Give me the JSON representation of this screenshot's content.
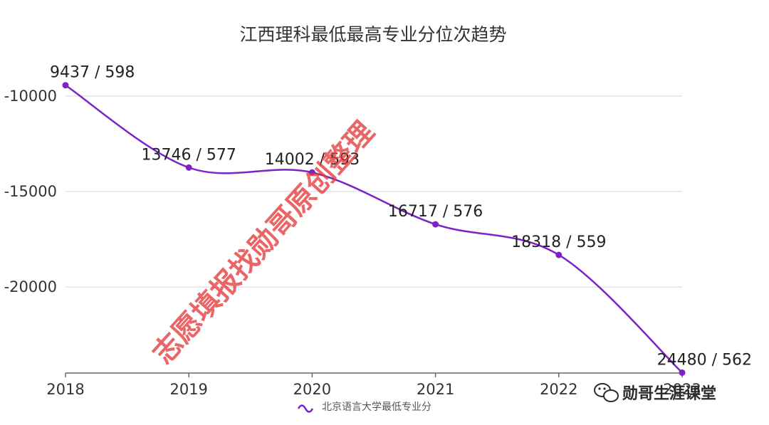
{
  "chart_data": {
    "type": "line",
    "title": "江西理科最低最高专业分位次趋势",
    "x": [
      "2018",
      "2019",
      "2020",
      "2021",
      "2022",
      "2023"
    ],
    "series": [
      {
        "name": "北京语言大学最低专业分",
        "values": [
          -9437,
          -13746,
          -14002,
          -16717,
          -18318,
          -24480
        ],
        "labels": [
          "9437 / 598",
          "13746 / 577",
          "14002 / 593",
          "16717 / 576",
          "18318 / 559",
          "24480 / 562"
        ]
      }
    ],
    "y_ticks": [
      -10000,
      -15000,
      -20000
    ],
    "y_tick_labels": [
      "-10000",
      "-15000",
      "-20000"
    ],
    "ylim": [
      -24500,
      -9000
    ],
    "grid": true,
    "legend_position": "bottom-center",
    "line_color": "#7b22c9"
  },
  "watermark": "志愿填报找勋哥原创整理",
  "wechat_badge": "勋哥生涯课堂",
  "wechat_icon": "wechat-icon"
}
